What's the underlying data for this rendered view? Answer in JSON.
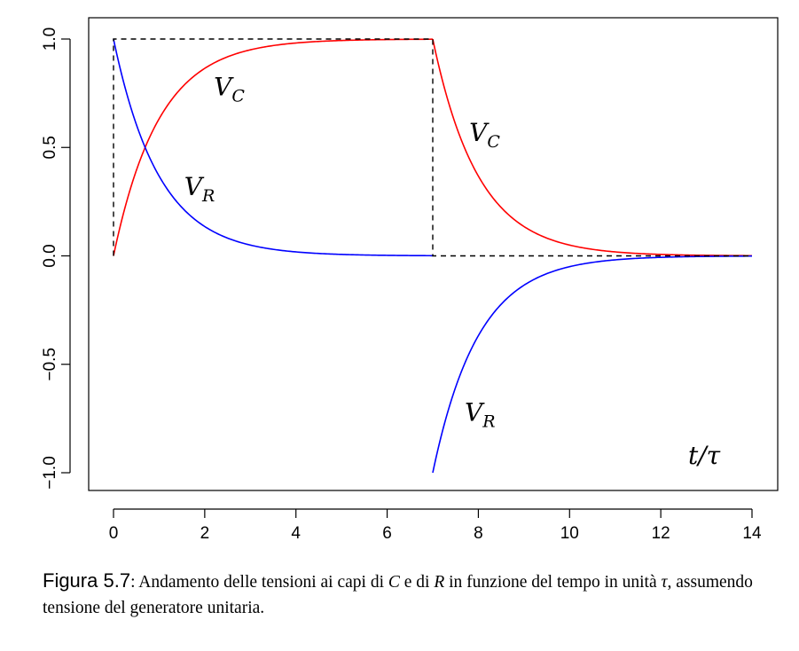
{
  "chart_data": {
    "type": "line",
    "xlim": [
      0,
      14
    ],
    "ylim": [
      -1,
      1
    ],
    "x_ticks": [
      "0",
      "2",
      "4",
      "6",
      "8",
      "10",
      "12",
      "14"
    ],
    "y_ticks": [
      "−1.0",
      "−0.5",
      "0.0",
      "0.5",
      "1.0"
    ],
    "x_tick_values": [
      0,
      2,
      4,
      6,
      8,
      10,
      12,
      14
    ],
    "y_tick_values": [
      -1,
      -0.5,
      0,
      0.5,
      1
    ],
    "grid": false,
    "series": [
      {
        "label": "V_C",
        "color": "#ff0000",
        "segments": [
          {
            "function": "1 - exp(-t)",
            "t_range": [
              0,
              7
            ]
          },
          {
            "function": "exp(-(t - 7))",
            "t_range": [
              7,
              14
            ]
          }
        ]
      },
      {
        "label": "V_R",
        "color": "#0000ff",
        "segments": [
          {
            "function": "exp(-t)",
            "t_range": [
              0,
              7
            ]
          },
          {
            "function": "-exp(-(t - 7))",
            "t_range": [
              7,
              14
            ]
          }
        ]
      },
      {
        "label": "",
        "color": "#000000",
        "style": "dashed",
        "x": [
          0,
          0,
          7,
          7,
          14
        ],
        "y": [
          0,
          1,
          1,
          0,
          0
        ]
      }
    ],
    "annotations": [
      {
        "text": "V",
        "sub": "C",
        "x": 2.2,
        "y": 0.74
      },
      {
        "text": "V",
        "sub": "R",
        "x": 1.55,
        "y": 0.28
      },
      {
        "text": "V",
        "sub": "C",
        "x": 7.8,
        "y": 0.53
      },
      {
        "text": "V",
        "sub": "R",
        "x": 7.7,
        "y": -0.76
      },
      {
        "text": "t/τ",
        "sub": "",
        "x": 12.6,
        "y": -0.96
      }
    ]
  },
  "caption": {
    "figure_label": "Figura 5.7",
    "text_1": ": Andamento delle tensioni ai capi di ",
    "var_c": "C",
    "text_2": " e di ",
    "var_r": "R",
    "text_3": " in funzione del tempo in unità ",
    "var_tau": "τ",
    "text_4": ", assumendo tensione del generatore unitaria."
  }
}
